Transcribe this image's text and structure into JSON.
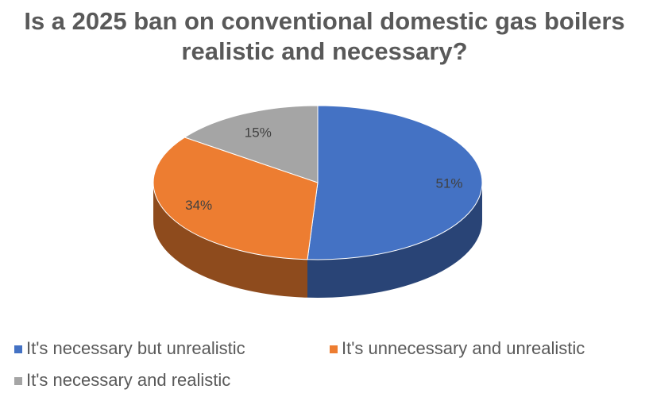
{
  "chart_data": {
    "type": "pie",
    "title": "Is a 2025 ban on conventional domestic gas boilers realistic and necessary?",
    "categories": [
      "It's necessary but unrealistic",
      "It's unnecessary and unrealistic",
      "It's necessary and realistic"
    ],
    "values": [
      51,
      34,
      15
    ],
    "value_labels": [
      "51%",
      "34%",
      "15%"
    ],
    "colors": [
      "#4472c4",
      "#ed7d31",
      "#a5a5a5"
    ],
    "legend": "bottom"
  }
}
